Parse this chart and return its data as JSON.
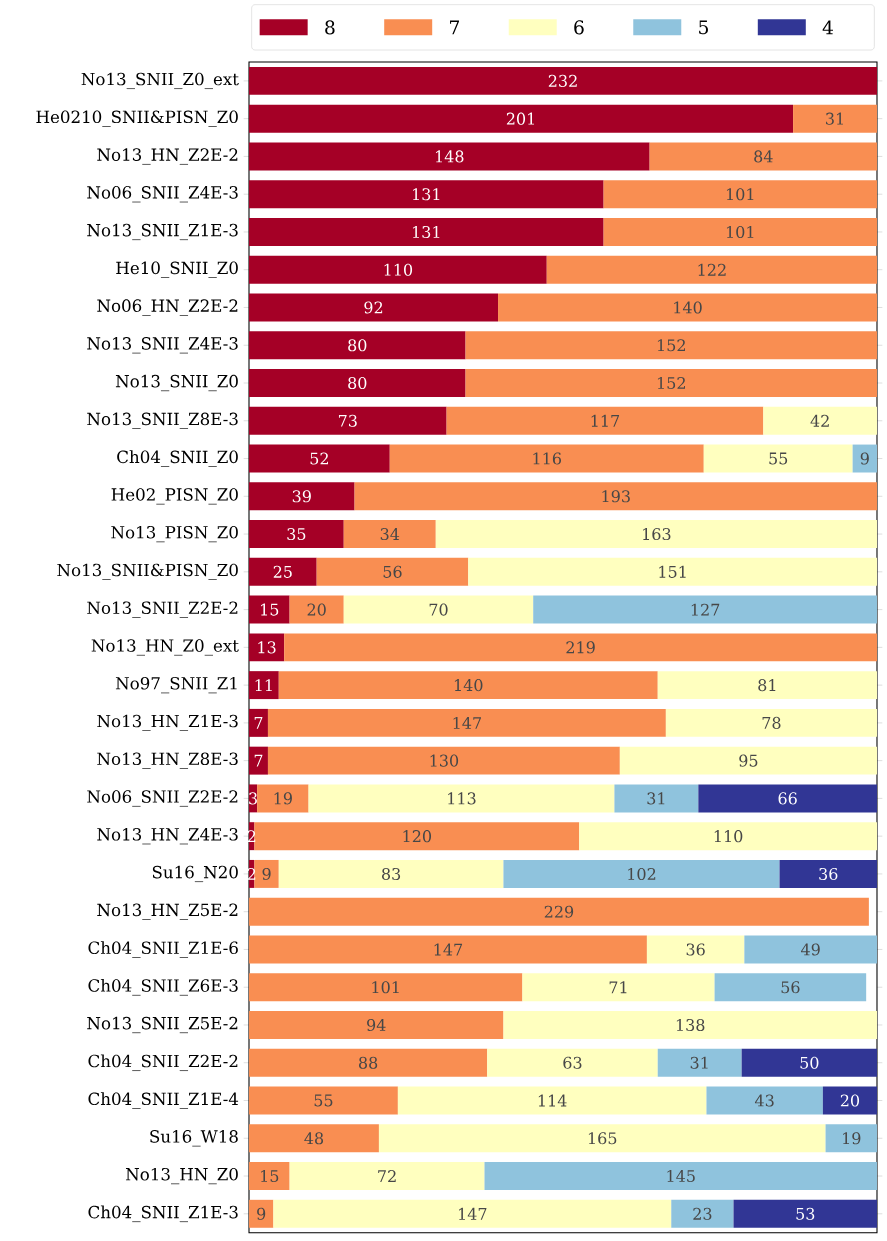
{
  "chart_data": {
    "type": "bar",
    "orientation": "horizontal",
    "stacked": true,
    "data_labels": true,
    "legend": "top",
    "tick_labels": "y",
    "xlim": [
      0,
      232
    ],
    "categories": [
      "No13_SNII_Z0_ext",
      "He0210_SNII&PISN_Z0",
      "No13_HN_Z2E-2",
      "No06_SNII_Z4E-3",
      "No13_SNII_Z1E-3",
      "He10_SNII_Z0",
      "No06_HN_Z2E-2",
      "No13_SNII_Z4E-3",
      "No13_SNII_Z0",
      "No13_SNII_Z8E-3",
      "Ch04_SNII_Z0",
      "He02_PISN_Z0",
      "No13_PISN_Z0",
      "No13_SNII&PISN_Z0",
      "No13_SNII_Z2E-2",
      "No13_HN_Z0_ext",
      "No97_SNII_Z1",
      "No13_HN_Z1E-3",
      "No13_HN_Z8E-3",
      "No06_SNII_Z2E-2",
      "No13_HN_Z4E-3",
      "Su16_N20",
      "No13_HN_Z5E-2",
      "Ch04_SNII_Z1E-6",
      "Ch04_SNII_Z6E-3",
      "No13_SNII_Z5E-2",
      "Ch04_SNII_Z2E-2",
      "Ch04_SNII_Z1E-4",
      "Su16_W18",
      "No13_HN_Z0",
      "Ch04_SNII_Z1E-3"
    ],
    "series": [
      {
        "name": "8",
        "color": "#a50026",
        "values": [
          232,
          201,
          148,
          131,
          131,
          110,
          92,
          80,
          80,
          73,
          52,
          39,
          35,
          25,
          15,
          13,
          11,
          7,
          7,
          3,
          2,
          2,
          null,
          null,
          null,
          null,
          null,
          null,
          null,
          null,
          null
        ]
      },
      {
        "name": "7",
        "color": "#f98e52",
        "values": [
          null,
          31,
          84,
          101,
          101,
          122,
          140,
          152,
          152,
          117,
          116,
          193,
          34,
          56,
          20,
          219,
          140,
          147,
          130,
          19,
          120,
          9,
          229,
          147,
          101,
          94,
          88,
          55,
          48,
          15,
          9
        ]
      },
      {
        "name": "6",
        "color": "#ffffbf",
        "values": [
          null,
          null,
          null,
          null,
          null,
          null,
          null,
          null,
          null,
          42,
          55,
          null,
          163,
          151,
          70,
          null,
          81,
          78,
          95,
          113,
          110,
          83,
          null,
          36,
          71,
          138,
          63,
          114,
          165,
          72,
          147
        ]
      },
      {
        "name": "5",
        "color": "#8fc3dd",
        "values": [
          null,
          null,
          null,
          null,
          null,
          null,
          null,
          null,
          null,
          null,
          9,
          null,
          null,
          null,
          127,
          null,
          null,
          null,
          null,
          31,
          null,
          102,
          null,
          49,
          56,
          null,
          31,
          43,
          19,
          145,
          23
        ]
      },
      {
        "name": "4",
        "color": "#313695",
        "values": [
          null,
          null,
          null,
          null,
          null,
          null,
          null,
          null,
          null,
          null,
          null,
          null,
          null,
          null,
          null,
          null,
          null,
          null,
          null,
          66,
          null,
          36,
          null,
          null,
          null,
          null,
          50,
          20,
          null,
          null,
          53
        ]
      }
    ]
  }
}
